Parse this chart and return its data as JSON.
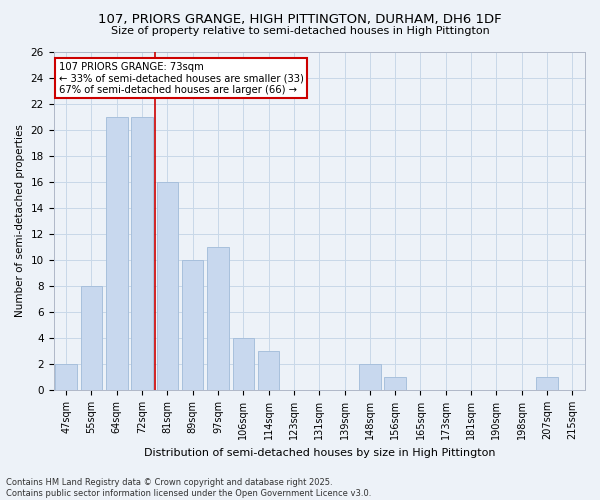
{
  "title_line1": "107, PRIORS GRANGE, HIGH PITTINGTON, DURHAM, DH6 1DF",
  "title_line2": "Size of property relative to semi-detached houses in High Pittington",
  "xlabel": "Distribution of semi-detached houses by size in High Pittington",
  "ylabel": "Number of semi-detached properties",
  "categories": [
    "47sqm",
    "55sqm",
    "64sqm",
    "72sqm",
    "81sqm",
    "89sqm",
    "97sqm",
    "106sqm",
    "114sqm",
    "123sqm",
    "131sqm",
    "139sqm",
    "148sqm",
    "156sqm",
    "165sqm",
    "173sqm",
    "181sqm",
    "190sqm",
    "198sqm",
    "207sqm",
    "215sqm"
  ],
  "values": [
    2,
    8,
    21,
    21,
    16,
    10,
    11,
    4,
    3,
    0,
    0,
    0,
    2,
    1,
    0,
    0,
    0,
    0,
    0,
    1,
    0
  ],
  "bar_color": "#c8d8ee",
  "bar_edge_color": "#a8c0dc",
  "vline_x": 3.5,
  "vline_color": "#cc0000",
  "annotation_line1": "107 PRIORS GRANGE: 73sqm",
  "annotation_line2": "← 33% of semi-detached houses are smaller (33)",
  "annotation_line3": "67% of semi-detached houses are larger (66) →",
  "annotation_box_fc": "#ffffff",
  "annotation_box_ec": "#cc0000",
  "grid_color": "#c8d8e8",
  "ylim": [
    0,
    26
  ],
  "yticks": [
    0,
    2,
    4,
    6,
    8,
    10,
    12,
    14,
    16,
    18,
    20,
    22,
    24,
    26
  ],
  "footer_line1": "Contains HM Land Registry data © Crown copyright and database right 2025.",
  "footer_line2": "Contains public sector information licensed under the Open Government Licence v3.0.",
  "bg_color": "#edf2f8"
}
